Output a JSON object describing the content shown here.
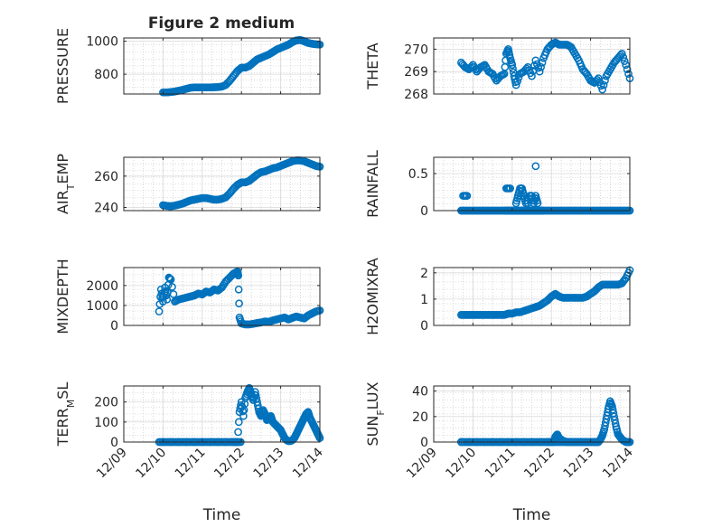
{
  "figure_title": "Figure 2 medium",
  "colors": {
    "marker": "#0072BD",
    "axis": "#262626",
    "grid": "#bfbfbf"
  },
  "chart_data": [
    {
      "id": "pressure",
      "type": "scatter",
      "ylabel": "PRESSURE",
      "title": "Figure 2 medium",
      "xlabel": "",
      "show_x_ticks": false,
      "xlim": [
        0,
        5
      ],
      "ylim": [
        680,
        1020
      ],
      "yticks": [
        800,
        1000
      ],
      "yticklabels": [
        "800",
        "1000"
      ],
      "x": [
        1,
        1.1,
        1.2,
        1.3,
        1.4,
        1.5,
        1.6,
        1.7,
        1.8,
        1.9,
        2,
        2.1,
        2.2,
        2.3,
        2.4,
        2.5,
        2.6,
        2.7,
        2.8,
        2.9,
        3,
        3.1,
        3.2,
        3.3,
        3.4,
        3.5,
        3.6,
        3.7,
        3.8,
        3.9,
        4,
        4.1,
        4.2,
        4.3,
        4.4,
        4.5,
        4.6,
        4.7,
        4.8,
        4.9,
        5
      ],
      "y": [
        690,
        690,
        692,
        695,
        700,
        705,
        712,
        718,
        720,
        720,
        720,
        720,
        720,
        721,
        722,
        725,
        735,
        760,
        790,
        820,
        840,
        840,
        850,
        870,
        890,
        900,
        910,
        920,
        935,
        950,
        960,
        970,
        980,
        995,
        1005,
        1008,
        1000,
        990,
        985,
        982,
        980
      ]
    },
    {
      "id": "theta",
      "type": "scatter",
      "ylabel": "THETA",
      "xlabel": "",
      "show_x_ticks": false,
      "xlim": [
        0,
        5
      ],
      "ylim": [
        268,
        270.5
      ],
      "yticks": [
        268,
        269,
        270
      ],
      "yticklabels": [
        "268",
        "269",
        "270"
      ],
      "x": [
        0.7,
        0.8,
        0.9,
        1,
        1.1,
        1.2,
        1.3,
        1.4,
        1.5,
        1.6,
        1.7,
        1.8,
        1.85,
        1.9,
        1.95,
        2,
        2.05,
        2.1,
        2.2,
        2.3,
        2.4,
        2.5,
        2.6,
        2.7,
        2.8,
        2.9,
        3,
        3.1,
        3.2,
        3.3,
        3.4,
        3.5,
        3.6,
        3.7,
        3.8,
        3.9,
        4,
        4.1,
        4.2,
        4.3,
        4.4,
        4.5,
        4.6,
        4.7,
        4.8,
        4.9,
        5
      ],
      "y": [
        269.4,
        269.2,
        269.1,
        269.3,
        269,
        269.2,
        269.3,
        269,
        268.9,
        268.6,
        268.8,
        268.9,
        269.8,
        270,
        269.6,
        269.3,
        268.8,
        268.4,
        268.9,
        269,
        269.2,
        268.8,
        269.5,
        269,
        269.6,
        270,
        270.2,
        270.3,
        270.2,
        270.2,
        270.2,
        270.1,
        269.8,
        269.5,
        269.1,
        268.9,
        268.6,
        268.5,
        268.7,
        268.2,
        268.8,
        269.1,
        269.4,
        269.6,
        269.8,
        269.3,
        268.7
      ]
    },
    {
      "id": "air_temp",
      "type": "scatter",
      "ylabel": "AIR",
      "ylabel_sub": "T",
      "ylabel_rest": "EMP",
      "xlabel": "",
      "show_x_ticks": false,
      "xlim": [
        0,
        5
      ],
      "ylim": [
        238,
        272
      ],
      "yticks": [
        240,
        260
      ],
      "yticklabels": [
        "240",
        "260"
      ],
      "x": [
        1,
        1.1,
        1.2,
        1.3,
        1.4,
        1.5,
        1.6,
        1.7,
        1.8,
        1.9,
        2,
        2.1,
        2.2,
        2.3,
        2.4,
        2.5,
        2.6,
        2.7,
        2.8,
        2.9,
        3,
        3.1,
        3.2,
        3.3,
        3.4,
        3.5,
        3.6,
        3.7,
        3.8,
        3.9,
        4,
        4.1,
        4.2,
        4.3,
        4.4,
        4.5,
        4.6,
        4.7,
        4.8,
        4.9,
        5
      ],
      "y": [
        241.5,
        241,
        240.8,
        241.2,
        241.8,
        242.5,
        243.5,
        244.5,
        245,
        245.5,
        246,
        246,
        245.5,
        245,
        245,
        245.5,
        246.5,
        249,
        252,
        254.5,
        256,
        256,
        257,
        259,
        261,
        262.5,
        263,
        264,
        265,
        265.5,
        266.5,
        267.5,
        268.5,
        269.5,
        270,
        270,
        269.5,
        268.5,
        267.5,
        266.5,
        266
      ]
    },
    {
      "id": "rainfall",
      "type": "scatter",
      "ylabel": "RAINFALL",
      "xlabel": "",
      "show_x_ticks": false,
      "xlim": [
        0,
        5
      ],
      "ylim": [
        0,
        0.72
      ],
      "yticks": [
        0,
        0.5
      ],
      "yticklabels": [
        "0",
        "0.5"
      ],
      "x": [
        0.7,
        0.8,
        0.9,
        1,
        1.1,
        1.2,
        1.3,
        1.4,
        1.5,
        1.6,
        1.7,
        1.8,
        1.85,
        1.9,
        1.95,
        2,
        2.05,
        2.1,
        2.15,
        2.2,
        2.25,
        2.3,
        2.35,
        2.4,
        2.45,
        2.5,
        2.55,
        2.6,
        2.65,
        2.7,
        2.75,
        2.8,
        2.9,
        3,
        3.1,
        3.2,
        3.3,
        3.4,
        3.5,
        3.6,
        3.7,
        3.8,
        3.9,
        4,
        4.1,
        4.2,
        4.3,
        4.4,
        4.5,
        4.6,
        4.7,
        4.8,
        4.9,
        5,
        0.75,
        0.85,
        1.85,
        1.95,
        2.1,
        2.15,
        2.2,
        2.25,
        2.3,
        2.35,
        2.45,
        2.5,
        2.55,
        2.6,
        2.65,
        2.4
      ],
      "y": [
        0,
        0,
        0,
        0,
        0,
        0,
        0,
        0,
        0,
        0,
        0,
        0,
        0,
        0,
        0,
        0,
        0,
        0,
        0,
        0,
        0,
        0,
        0,
        0,
        0,
        0,
        0,
        0,
        0,
        0,
        0,
        0,
        0,
        0,
        0,
        0,
        0,
        0,
        0,
        0,
        0,
        0,
        0,
        0,
        0,
        0,
        0,
        0,
        0,
        0,
        0,
        0,
        0,
        0,
        0.2,
        0.2,
        0.3,
        0.3,
        0.1,
        0.2,
        0.3,
        0.3,
        0.2,
        0.1,
        0.2,
        0.2,
        0.1,
        0.2,
        0.1,
        0.1
      ],
      "extra_x": [
        2.6
      ],
      "extra_y": [
        0.6
      ]
    },
    {
      "id": "mixdepth",
      "type": "scatter",
      "ylabel": "MIXDEPTH",
      "xlabel": "",
      "show_x_ticks": false,
      "xlim": [
        0,
        5
      ],
      "ylim": [
        0,
        2900
      ],
      "yticks": [
        0,
        1000,
        2000
      ],
      "yticklabels": [
        "0",
        "1000",
        "2000"
      ],
      "x": [
        0.9,
        0.95,
        1,
        1.05,
        1.1,
        1.15,
        1.2,
        1.3,
        1.4,
        1.5,
        1.6,
        1.7,
        1.8,
        1.9,
        2,
        2.1,
        2.2,
        2.3,
        2.4,
        2.5,
        2.6,
        2.7,
        2.8,
        2.9,
        2.92,
        2.95,
        3,
        3.1,
        3.2,
        3.3,
        3.4,
        3.5,
        3.6,
        3.7,
        3.8,
        3.9,
        4,
        4.1,
        4.2,
        4.3,
        4.4,
        4.5,
        4.6,
        4.7,
        4.8,
        4.9,
        5
      ],
      "y": [
        700,
        1800,
        1200,
        1900,
        1300,
        2400,
        2300,
        1200,
        1300,
        1350,
        1400,
        1450,
        1500,
        1600,
        1550,
        1700,
        1650,
        1800,
        1750,
        1900,
        2200,
        2400,
        2600,
        2700,
        2500,
        400,
        100,
        50,
        50,
        80,
        120,
        150,
        200,
        180,
        250,
        300,
        350,
        400,
        300,
        380,
        450,
        400,
        350,
        500,
        600,
        700,
        750
      ]
    },
    {
      "id": "h2omixra",
      "type": "scatter",
      "ylabel": "H2OMIXRA",
      "xlabel": "",
      "show_x_ticks": false,
      "xlim": [
        0,
        5
      ],
      "ylim": [
        0,
        2.2
      ],
      "yticks": [
        0,
        1,
        2
      ],
      "yticklabels": [
        "0",
        "1",
        "2"
      ],
      "x": [
        0.7,
        0.8,
        0.9,
        1,
        1.1,
        1.2,
        1.3,
        1.4,
        1.5,
        1.6,
        1.7,
        1.8,
        1.9,
        2,
        2.1,
        2.2,
        2.3,
        2.4,
        2.5,
        2.6,
        2.7,
        2.8,
        2.9,
        3,
        3.1,
        3.2,
        3.3,
        3.4,
        3.5,
        3.6,
        3.7,
        3.8,
        3.9,
        4,
        4.1,
        4.2,
        4.3,
        4.4,
        4.5,
        4.6,
        4.7,
        4.8,
        4.9,
        5
      ],
      "y": [
        0.4,
        0.4,
        0.4,
        0.4,
        0.4,
        0.4,
        0.4,
        0.4,
        0.4,
        0.4,
        0.4,
        0.4,
        0.45,
        0.45,
        0.5,
        0.5,
        0.55,
        0.6,
        0.65,
        0.7,
        0.75,
        0.85,
        0.95,
        1.1,
        1.2,
        1.1,
        1.05,
        1.05,
        1.05,
        1.05,
        1.05,
        1.05,
        1.1,
        1.2,
        1.3,
        1.45,
        1.55,
        1.55,
        1.55,
        1.55,
        1.55,
        1.6,
        1.8,
        2.1
      ]
    },
    {
      "id": "terr_msl",
      "type": "scatter",
      "ylabel": "TERR",
      "ylabel_sub": "M",
      "ylabel_rest": "SL",
      "xlabel": "Time",
      "show_x_ticks": true,
      "xlim": [
        0,
        5
      ],
      "ylim": [
        0,
        280
      ],
      "yticks": [
        0,
        100,
        200
      ],
      "yticklabels": [
        "0",
        "100",
        "200"
      ],
      "x": [
        1,
        1.2,
        1.4,
        1.6,
        1.8,
        2,
        2.2,
        2.4,
        2.6,
        2.8,
        2.9,
        2.95,
        3,
        3.05,
        3.1,
        3.15,
        3.2,
        3.25,
        3.3,
        3.35,
        3.4,
        3.45,
        3.5,
        3.55,
        3.6,
        3.65,
        3.7,
        3.75,
        3.8,
        3.85,
        3.9,
        3.95,
        4,
        4.05,
        4.1,
        4.15,
        4.2,
        4.25,
        4.3,
        4.35,
        4.4,
        4.45,
        4.5,
        4.55,
        4.6,
        4.65,
        4.7,
        4.75,
        4.8,
        4.85,
        4.9,
        4.95,
        5
      ],
      "y": [
        0,
        0,
        0,
        0,
        0,
        0,
        0,
        0,
        0,
        0,
        0,
        150,
        200,
        130,
        220,
        250,
        270,
        240,
        210,
        250,
        200,
        150,
        130,
        160,
        140,
        110,
        120,
        130,
        100,
        90,
        80,
        70,
        60,
        40,
        20,
        10,
        5,
        5,
        10,
        20,
        40,
        60,
        80,
        100,
        120,
        140,
        150,
        120,
        100,
        80,
        60,
        40,
        20
      ],
      "dense_zero_range": [
        0.9,
        3.0
      ]
    },
    {
      "id": "sun_flux",
      "type": "scatter",
      "ylabel": "SUN",
      "ylabel_sub": "F",
      "ylabel_rest": "LUX",
      "xlabel": "Time",
      "show_x_ticks": true,
      "xlim": [
        0,
        5
      ],
      "ylim": [
        0,
        44
      ],
      "yticks": [
        0,
        20,
        40
      ],
      "yticklabels": [
        "0",
        "20",
        "40"
      ],
      "x": [
        0.7,
        0.9,
        1.1,
        1.3,
        1.5,
        1.7,
        1.9,
        2.1,
        2.3,
        2.5,
        2.7,
        2.9,
        3,
        3.05,
        3.1,
        3.15,
        3.2,
        3.3,
        3.4,
        3.5,
        3.6,
        3.7,
        3.8,
        3.9,
        4,
        4.1,
        4.15,
        4.2,
        4.25,
        4.3,
        4.35,
        4.4,
        4.45,
        4.5,
        4.55,
        4.6,
        4.65,
        4.7,
        4.75,
        4.8,
        4.85,
        4.9,
        4.95,
        5
      ],
      "y": [
        0,
        0,
        0,
        0,
        0,
        0,
        0,
        0,
        0,
        0,
        0,
        0,
        0,
        0,
        4,
        6,
        3,
        1,
        0,
        0,
        0,
        0,
        0,
        0,
        0,
        0,
        0,
        0,
        2,
        5,
        10,
        18,
        26,
        32,
        28,
        20,
        12,
        6,
        4,
        2,
        1,
        0,
        0,
        0
      ],
      "dense_zero_range": [
        0.7,
        4.2
      ]
    }
  ],
  "x_tick_labels": [
    "12/09",
    "12/10",
    "12/11",
    "12/12",
    "12/13",
    "12/14"
  ]
}
